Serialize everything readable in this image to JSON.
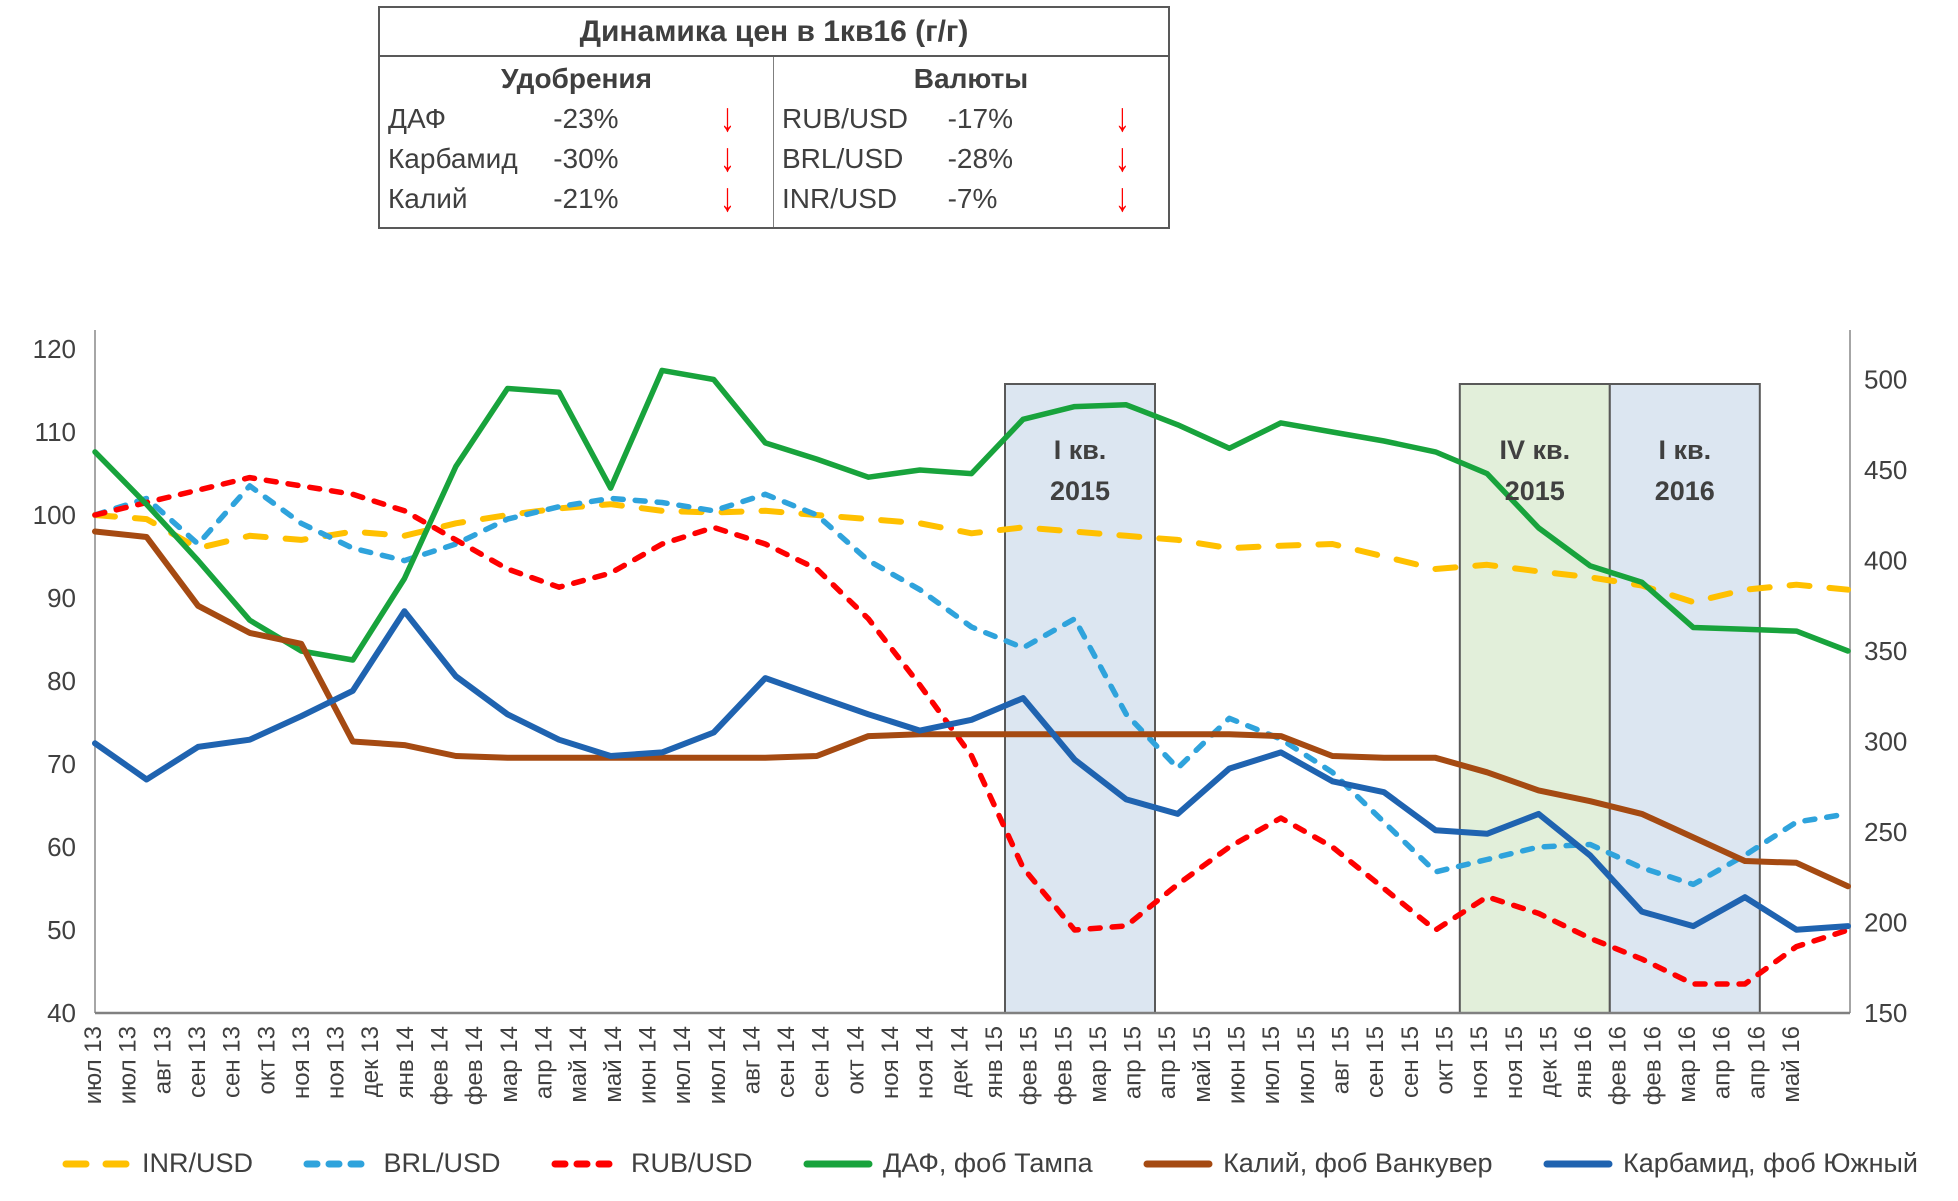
{
  "summary_table": {
    "title": "Динамика цен в 1кв16 (г/г)",
    "left_header": "Удобрения",
    "right_header": "Валюты",
    "arrow": "↓",
    "arrow_color": "#ff0000",
    "left_rows": [
      {
        "name": "ДАФ",
        "change": "-23%"
      },
      {
        "name": "Карбамид",
        "change": "-30%"
      },
      {
        "name": "Калий",
        "change": "-21%"
      }
    ],
    "right_rows": [
      {
        "name": "RUB/USD",
        "change": "-17%"
      },
      {
        "name": "BRL/USD",
        "change": "-28%"
      },
      {
        "name": "INR/USD",
        "change": "-7%"
      }
    ]
  },
  "chart_data": {
    "type": "line",
    "title": "",
    "grid": false,
    "legend_position": "bottom",
    "x_labels": [
      "июл 13",
      "июл 13",
      "авг 13",
      "сен 13",
      "сен 13",
      "окт 13",
      "ноя 13",
      "ноя 13",
      "дек 13",
      "янв 14",
      "фев 14",
      "фев 14",
      "мар 14",
      "апр 14",
      "май 14",
      "май 14",
      "июн 14",
      "июл 14",
      "июл 14",
      "авг 14",
      "сен 14",
      "сен 14",
      "окт 14",
      "ноя 14",
      "ноя 14",
      "дек 14",
      "янв 15",
      "фев 15",
      "фев 15",
      "мар 15",
      "апр 15",
      "апр 15",
      "май 15",
      "июн 15",
      "июл 15",
      "июл 15",
      "авг 15",
      "сен 15",
      "сен 15",
      "окт 15",
      "ноя 15",
      "ноя 15",
      "дек 15",
      "янв 16",
      "фев 16",
      "фев 16",
      "мар 16",
      "апр 16",
      "апр 16",
      "май 16"
    ],
    "months": [
      "июл 13",
      "авг 13",
      "сен 13",
      "окт 13",
      "ноя 13",
      "дек 13",
      "янв 14",
      "фев 14",
      "мар 14",
      "апр 14",
      "май 14",
      "июн 14",
      "июл 14",
      "авг 14",
      "сен 14",
      "окт 14",
      "ноя 14",
      "дек 14",
      "янв 15",
      "фев 15",
      "мар 15",
      "апр 15",
      "май 15",
      "июн 15",
      "июл 15",
      "авг 15",
      "сен 15",
      "окт 15",
      "ноя 15",
      "дек 15",
      "янв 16",
      "фев 16",
      "мар 16",
      "апр 16",
      "май 16"
    ],
    "left_axis": {
      "min": 40,
      "max": 120,
      "ticks": [
        120,
        110,
        100,
        90,
        80,
        70,
        60,
        50,
        40
      ]
    },
    "right_axis": {
      "min": 150,
      "max": 500,
      "ticks": [
        500,
        450,
        400,
        350,
        300,
        250,
        200,
        150
      ]
    },
    "highlight_regions": [
      {
        "line1": "I кв.",
        "line2": "2015",
        "fill": "#dce6f1",
        "start_index": 17.65,
        "end_index": 20.56
      },
      {
        "line1": "IV кв.",
        "line2": "2015",
        "fill": "#e2efda",
        "start_index": 26.47,
        "end_index": 29.38
      },
      {
        "line1": "I кв.",
        "line2": "2016",
        "fill": "#dce6f1",
        "start_index": 29.38,
        "end_index": 32.29
      }
    ],
    "series": [
      {
        "name": "INR/USD",
        "axis": "left",
        "color": "#FFC000",
        "dash": "20 20",
        "width": 6,
        "values": [
          100,
          99.5,
          96,
          97.5,
          97,
          98,
          97.5,
          99,
          100,
          100.8,
          101.3,
          100.5,
          100.3,
          100.5,
          100,
          99.5,
          99,
          97.8,
          98.5,
          98,
          97.5,
          97,
          96,
          96.3,
          96.5,
          95,
          93.5,
          94,
          93.2,
          92.5,
          91.5,
          89.5,
          91,
          91.6,
          91
        ]
      },
      {
        "name": "BRL/USD",
        "axis": "left",
        "color": "#2FA3DC",
        "dash": "10 12",
        "width": 5.5,
        "values": [
          100,
          102,
          96.5,
          103.5,
          99,
          96,
          94.5,
          96.5,
          99.5,
          101,
          102,
          101.5,
          100.5,
          102.5,
          100,
          94.5,
          91,
          86.5,
          84,
          87.5,
          76,
          69.5,
          75.5,
          73,
          69,
          63,
          57,
          58.5,
          60,
          60.3,
          57.5,
          55.5,
          59,
          63,
          64
        ]
      },
      {
        "name": "RUB/USD",
        "axis": "left",
        "color": "#FE0000",
        "dash": "10 12",
        "width": 5.5,
        "values": [
          100,
          101.5,
          103,
          104.5,
          103.5,
          102.5,
          100.5,
          97,
          93.5,
          91.3,
          93,
          96.5,
          98.5,
          96.5,
          93.5,
          87.5,
          79.5,
          71,
          57.5,
          50,
          50.5,
          55.5,
          60,
          63.5,
          60,
          55,
          50,
          54,
          52,
          49,
          46.5,
          43.5,
          43.5,
          48,
          50
        ]
      },
      {
        "name": "ДАФ, фоб Тампа",
        "axis": "right",
        "color": "#18A33C",
        "dash": null,
        "width": 5.5,
        "values": [
          460,
          431,
          400,
          367,
          350,
          345,
          390,
          452,
          495,
          493,
          440,
          505,
          500,
          465,
          456,
          446,
          450,
          448,
          478,
          485,
          486,
          475,
          462,
          476,
          471,
          466,
          460,
          448,
          418,
          397,
          388,
          363,
          362,
          361,
          350
        ]
      },
      {
        "name": "Калий, фоб Ванкувер",
        "axis": "right",
        "color": "#A54A12",
        "dash": null,
        "width": 6,
        "values": [
          416,
          413,
          375,
          360,
          354,
          300,
          298,
          292,
          291,
          291,
          291,
          291,
          291,
          291,
          292,
          303,
          304,
          304,
          304,
          304,
          304,
          304,
          304,
          303,
          292,
          291,
          291,
          283,
          273,
          267,
          260,
          247,
          234,
          233,
          220
        ]
      },
      {
        "name": "Карбамид, фоб Южный",
        "axis": "right",
        "color": "#1F63B0",
        "dash": null,
        "width": 6,
        "values": [
          299,
          279,
          297,
          301,
          314,
          328,
          372,
          336,
          315,
          301,
          292,
          294,
          305,
          335,
          325,
          315,
          306,
          312,
          324,
          290,
          268,
          260,
          285,
          294,
          278,
          272,
          251,
          249,
          260,
          237,
          206,
          198,
          214,
          196,
          198
        ]
      }
    ]
  }
}
